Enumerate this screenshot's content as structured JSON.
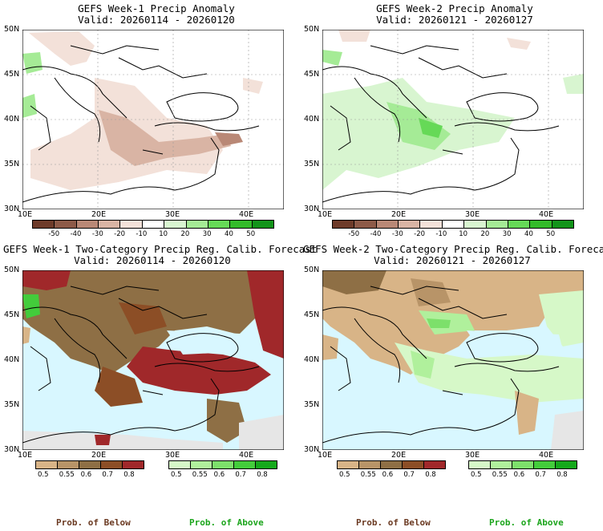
{
  "panels": [
    {
      "title": "GEFS Week-1 Precip Anomaly",
      "valid": "Valid: 20260114 - 20260120"
    },
    {
      "title": "GEFS Week-2 Precip Anomaly",
      "valid": "Valid: 20260121 - 20260127"
    },
    {
      "title": "GEFS Week-1 Two-Category Precip Reg. Calib. Forecast",
      "valid": "Valid: 20260114 - 20260120"
    },
    {
      "title": "GEFS Week-2 Two-Category Precip Reg. Calib. Forecast",
      "valid": "Valid: 20260121 - 20260127"
    }
  ],
  "lat_labels": [
    "50N",
    "45N",
    "40N",
    "35N",
    "30N"
  ],
  "lon_labels": [
    "10E",
    "20E",
    "30E",
    "40E"
  ],
  "anomaly_scale": {
    "ticks": [
      "-50",
      "-40",
      "-30",
      "-20",
      "-10",
      "10",
      "20",
      "30",
      "40",
      "50"
    ],
    "colors": [
      "#6e3b2a",
      "#8d5a48",
      "#b98876",
      "#d9b4a4",
      "#f3e1d9",
      "#ffffff",
      "#d8f5d0",
      "#a5eb96",
      "#66d957",
      "#33bb2a",
      "#12941a"
    ]
  },
  "prob_scale": {
    "ticks": [
      "0.5",
      "0.55",
      "0.6",
      "0.7",
      "0.8"
    ],
    "below_colors": [
      "#d8b487",
      "#b89468",
      "#8e6f45",
      "#8c4e26",
      "#a0282a"
    ],
    "above_colors": [
      "#d6f8c8",
      "#b0f09c",
      "#7de06b",
      "#43cc3b",
      "#15a91b"
    ]
  },
  "footer": {
    "below_label": "Prob. of Below",
    "above_label": "Prob. of Above"
  },
  "colors": {
    "sea": "#d8f7ff",
    "land_gray": "#e6e6e6",
    "below_text": "#6b3a22",
    "above_text": "#1ca51c"
  }
}
